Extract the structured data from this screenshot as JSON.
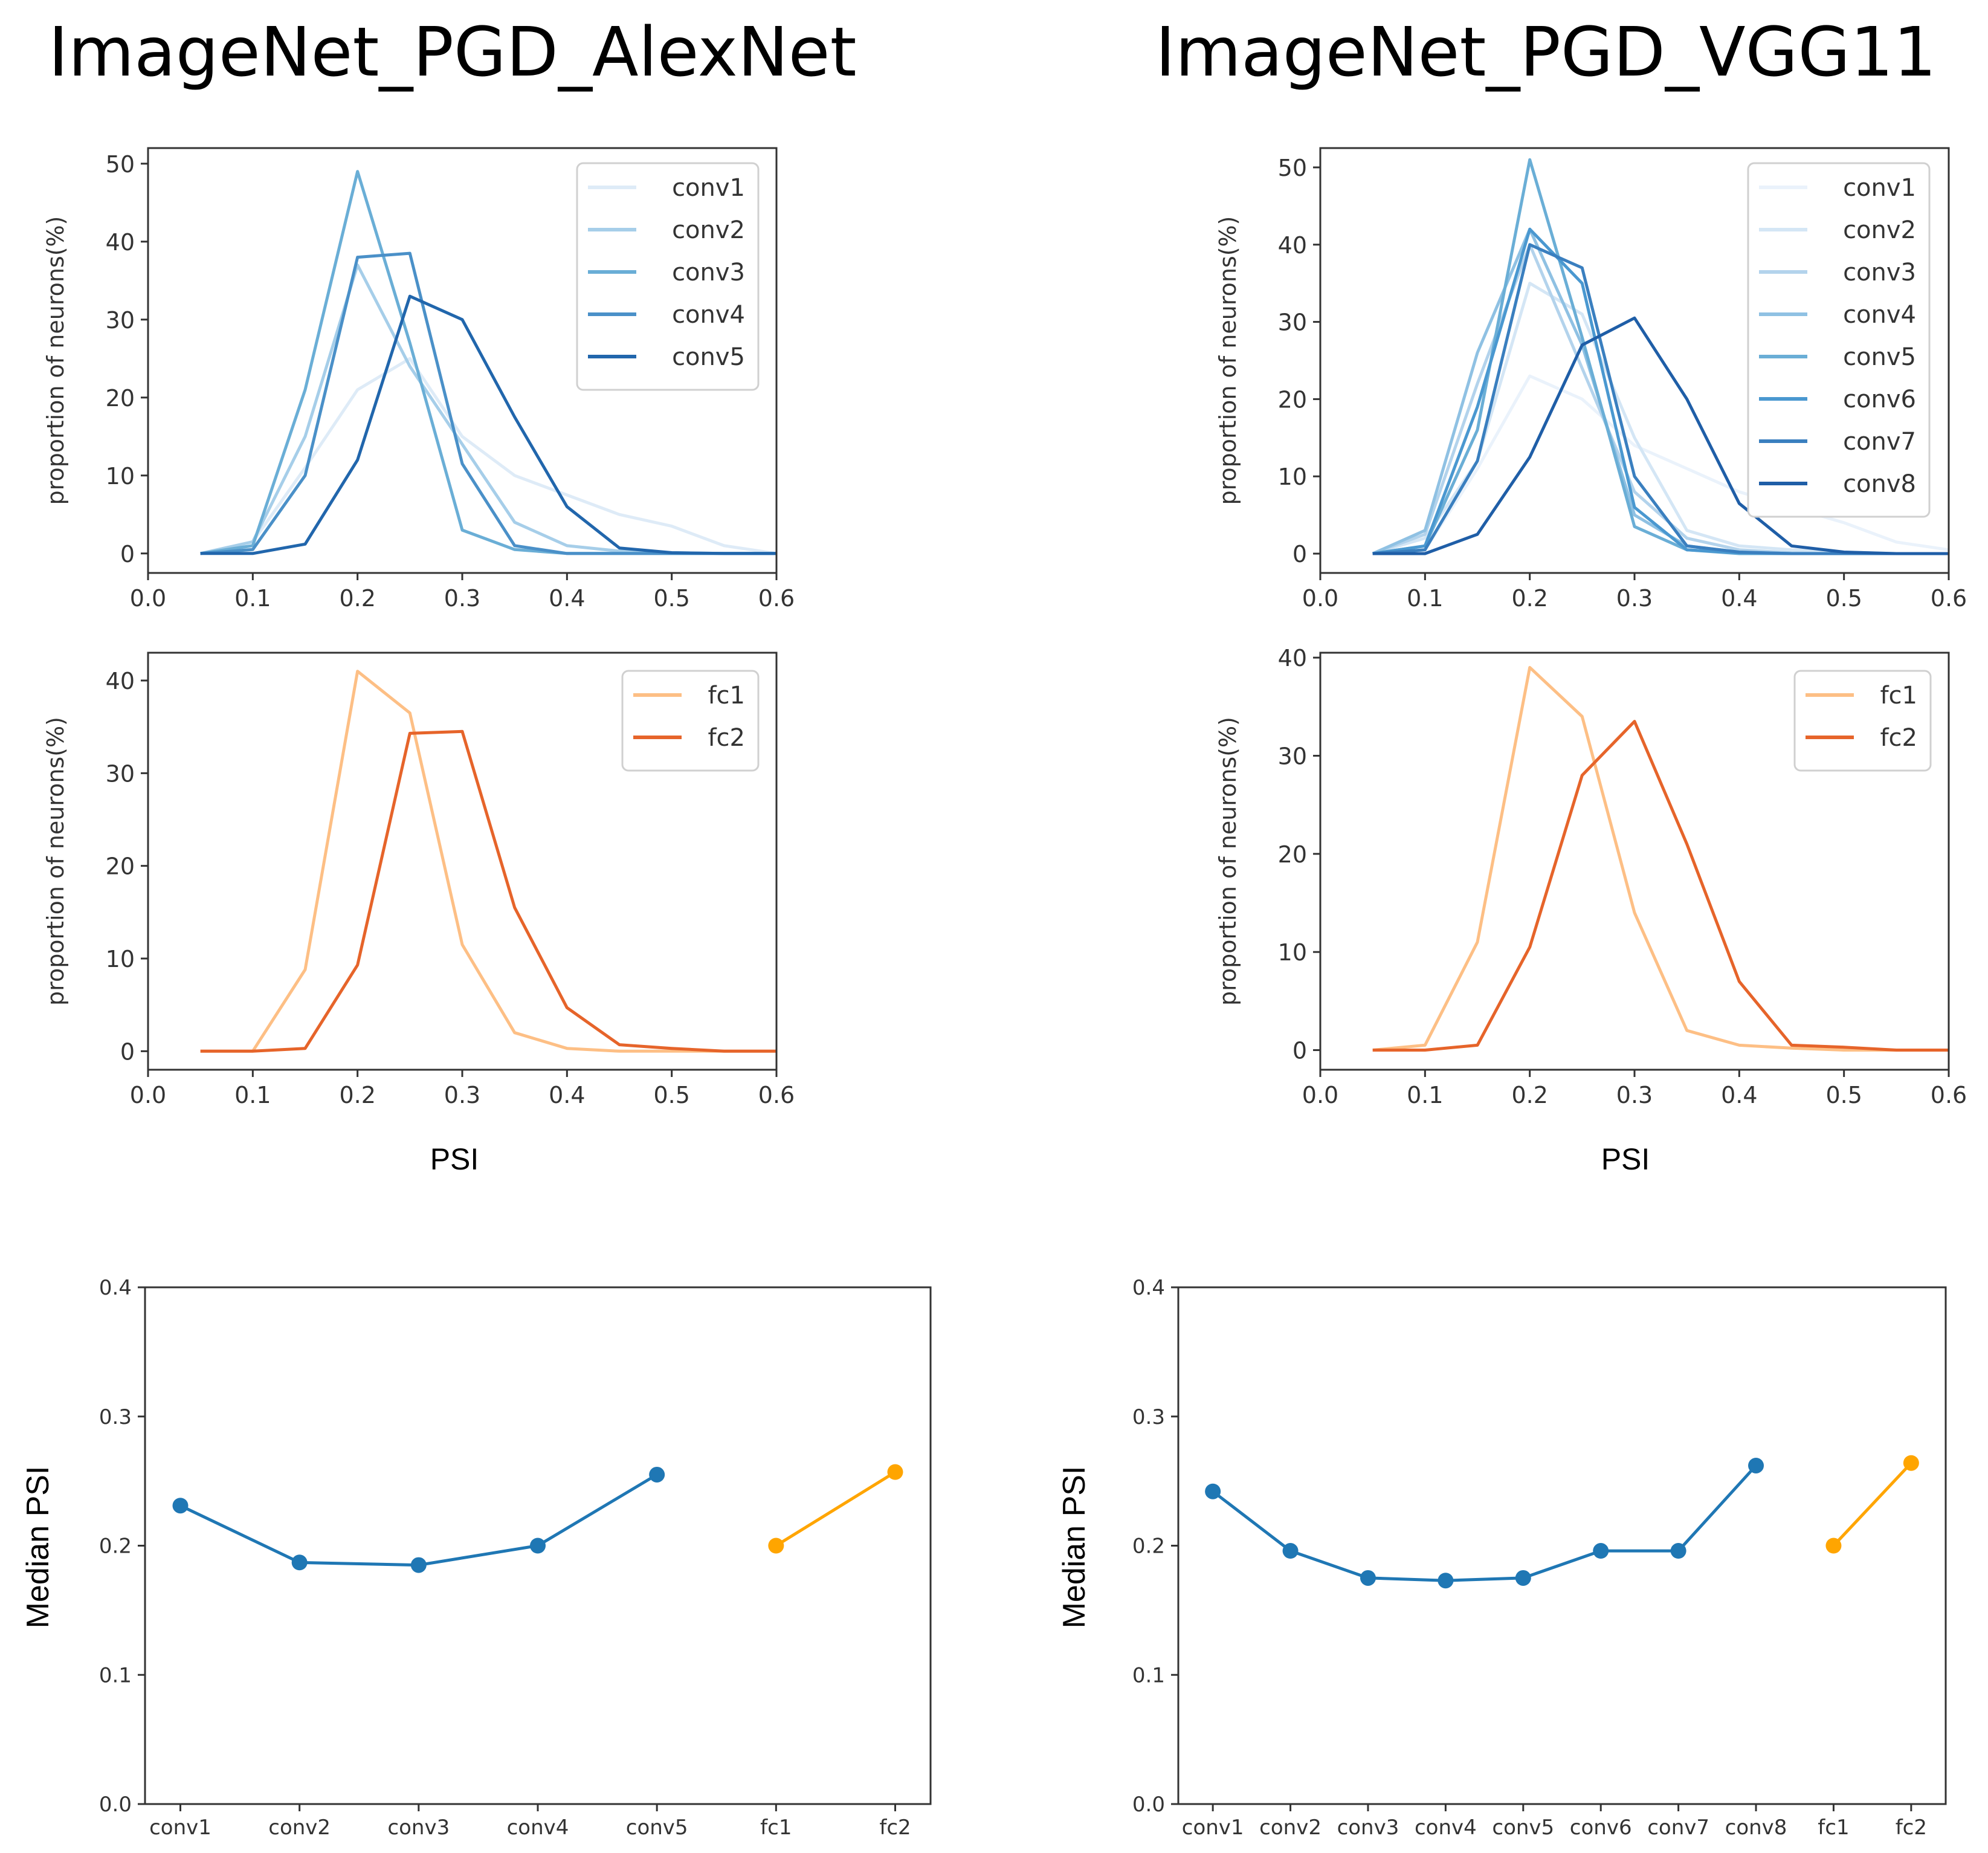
{
  "titles": {
    "left": "ImageNet_PGD_AlexNet",
    "right": "ImageNet_PGD_VGG11"
  },
  "chart_data": [
    {
      "id": "alex_conv",
      "type": "line",
      "x": [
        0.05,
        0.1,
        0.15,
        0.2,
        0.25,
        0.3,
        0.35,
        0.4,
        0.45,
        0.5,
        0.55,
        0.6
      ],
      "xlim": [
        0,
        0.6
      ],
      "ylim": [
        -2.5,
        52
      ],
      "xticks": [
        "0.0",
        "0.1",
        "0.2",
        "0.3",
        "0.4",
        "0.5",
        "0.6"
      ],
      "yticks": [
        0,
        10,
        20,
        30,
        40,
        50
      ],
      "ylabel": "proportion of neurons(%)",
      "xlabel": "",
      "legend": "top-right",
      "series": [
        {
          "name": "conv1",
          "color": "#deebf7",
          "values": [
            0,
            1.5,
            11,
            21,
            25,
            15,
            10,
            7.5,
            5,
            3.5,
            1,
            0
          ]
        },
        {
          "name": "conv2",
          "color": "#a6cee9",
          "values": [
            0,
            1.5,
            15,
            37,
            24,
            14,
            4,
            1,
            0.3,
            0.1,
            0,
            0
          ]
        },
        {
          "name": "conv3",
          "color": "#6aaed6",
          "values": [
            0,
            1,
            21,
            49,
            27,
            3,
            0.5,
            0,
            0,
            0,
            0,
            0
          ]
        },
        {
          "name": "conv4",
          "color": "#4a90c8",
          "values": [
            0,
            0.5,
            10,
            38,
            38.5,
            11.5,
            1,
            0,
            0,
            0,
            0,
            0
          ]
        },
        {
          "name": "conv5",
          "color": "#2166ac",
          "values": [
            0,
            0,
            1.2,
            12,
            33,
            30,
            17.5,
            6,
            0.7,
            0.1,
            0,
            0
          ]
        }
      ]
    },
    {
      "id": "alex_fc",
      "type": "line",
      "x": [
        0.05,
        0.1,
        0.15,
        0.2,
        0.25,
        0.3,
        0.35,
        0.4,
        0.45,
        0.5,
        0.55,
        0.6
      ],
      "xlim": [
        0,
        0.6
      ],
      "ylim": [
        -2,
        43
      ],
      "xticks": [
        "0.0",
        "0.1",
        "0.2",
        "0.3",
        "0.4",
        "0.5",
        "0.6"
      ],
      "yticks": [
        0,
        10,
        20,
        30,
        40
      ],
      "ylabel": "proportion of neurons(%)",
      "xlabel": "PSI",
      "legend": "top-right",
      "series": [
        {
          "name": "fc1",
          "color": "#fdbf85",
          "values": [
            0,
            0,
            8.8,
            41,
            36.5,
            11.5,
            2,
            0.3,
            0,
            0,
            0,
            0
          ]
        },
        {
          "name": "fc2",
          "color": "#e6642a",
          "values": [
            0,
            0,
            0.3,
            9.3,
            34.3,
            34.5,
            15.5,
            4.7,
            0.7,
            0.3,
            0,
            0
          ]
        }
      ]
    },
    {
      "id": "vgg_conv",
      "type": "line",
      "x": [
        0.05,
        0.1,
        0.15,
        0.2,
        0.25,
        0.3,
        0.35,
        0.4,
        0.45,
        0.5,
        0.55,
        0.6
      ],
      "xlim": [
        0,
        0.6
      ],
      "ylim": [
        -2.5,
        52.5
      ],
      "xticks": [
        "0.0",
        "0.1",
        "0.2",
        "0.3",
        "0.4",
        "0.5",
        "0.6"
      ],
      "yticks": [
        0,
        10,
        20,
        30,
        40,
        50
      ],
      "ylabel": "proportion of neurons(%)",
      "xlabel": "",
      "legend": "top-right",
      "series": [
        {
          "name": "conv1",
          "color": "#eaf2fb",
          "values": [
            0,
            0.5,
            11,
            23,
            20,
            14,
            11,
            8,
            6,
            4,
            1.5,
            0.5
          ]
        },
        {
          "name": "conv2",
          "color": "#d4e6f5",
          "values": [
            0,
            2,
            12,
            35,
            31,
            15,
            3,
            1,
            0.5,
            0.2,
            0,
            0
          ]
        },
        {
          "name": "conv3",
          "color": "#b3d3ec",
          "values": [
            0,
            2.5,
            22,
            40,
            24,
            8,
            2,
            0.5,
            0.1,
            0,
            0,
            0
          ]
        },
        {
          "name": "conv4",
          "color": "#8fc1e3",
          "values": [
            0,
            3,
            26,
            42,
            27,
            5,
            1,
            0.2,
            0,
            0,
            0,
            0
          ]
        },
        {
          "name": "conv5",
          "color": "#6aaed6",
          "values": [
            0,
            1,
            16,
            51,
            28,
            3.5,
            0.5,
            0,
            0,
            0,
            0,
            0
          ]
        },
        {
          "name": "conv6",
          "color": "#4a98d0",
          "values": [
            0,
            1,
            19,
            42,
            35,
            6,
            0.5,
            0.1,
            0,
            0,
            0,
            0
          ]
        },
        {
          "name": "conv7",
          "color": "#3a7fbf",
          "values": [
            0,
            0.5,
            12,
            40,
            37,
            10,
            1,
            0.2,
            0,
            0,
            0,
            0
          ]
        },
        {
          "name": "conv8",
          "color": "#1f5ea7",
          "values": [
            0,
            0,
            2.5,
            12.5,
            27,
            30.5,
            20,
            6.5,
            1,
            0.2,
            0,
            0
          ]
        }
      ]
    },
    {
      "id": "vgg_fc",
      "type": "line",
      "x": [
        0.05,
        0.1,
        0.15,
        0.2,
        0.25,
        0.3,
        0.35,
        0.4,
        0.45,
        0.5,
        0.55,
        0.6
      ],
      "xlim": [
        0,
        0.6
      ],
      "ylim": [
        -2,
        40.5
      ],
      "xticks": [
        "0.0",
        "0.1",
        "0.2",
        "0.3",
        "0.4",
        "0.5",
        "0.6"
      ],
      "yticks": [
        0,
        10,
        20,
        30,
        40
      ],
      "ylabel": "proportion of neurons(%)",
      "xlabel": "PSI",
      "legend": "top-right",
      "series": [
        {
          "name": "fc1",
          "color": "#fdbf85",
          "values": [
            0,
            0.5,
            11,
            39,
            34,
            14,
            2,
            0.5,
            0.2,
            0,
            0,
            0
          ]
        },
        {
          "name": "fc2",
          "color": "#e6642a",
          "values": [
            0,
            0,
            0.5,
            10.5,
            28,
            33.5,
            21,
            7,
            0.5,
            0.3,
            0,
            0
          ]
        }
      ]
    },
    {
      "id": "alex_median",
      "type": "line",
      "categories": [
        "conv1",
        "conv2",
        "conv3",
        "conv4",
        "conv5",
        "fc1",
        "fc2"
      ],
      "ylim": [
        0,
        0.4
      ],
      "yticks": [
        "0.0",
        "0.1",
        "0.2",
        "0.3",
        "0.4"
      ],
      "ylabel": "Median PSI",
      "xlabel": "",
      "series": [
        {
          "color": "#1f77b4",
          "x": [
            0,
            1,
            2,
            3,
            4
          ],
          "values": [
            0.231,
            0.187,
            0.185,
            0.2,
            0.255
          ]
        },
        {
          "color": "#ffa500",
          "x": [
            5,
            6
          ],
          "values": [
            0.2,
            0.257
          ]
        }
      ]
    },
    {
      "id": "vgg_median",
      "type": "line",
      "categories": [
        "conv1",
        "conv2",
        "conv3",
        "conv4",
        "conv5",
        "conv6",
        "conv7",
        "conv8",
        "fc1",
        "fc2"
      ],
      "ylim": [
        0,
        0.4
      ],
      "yticks": [
        "0.0",
        "0.1",
        "0.2",
        "0.3",
        "0.4"
      ],
      "ylabel": "Median PSI",
      "xlabel": "",
      "series": [
        {
          "color": "#1f77b4",
          "x": [
            0,
            1,
            2,
            3,
            4,
            5,
            6,
            7
          ],
          "values": [
            0.242,
            0.196,
            0.175,
            0.173,
            0.175,
            0.196,
            0.196,
            0.262
          ]
        },
        {
          "color": "#ffa500",
          "x": [
            8,
            9
          ],
          "values": [
            0.2,
            0.264
          ]
        }
      ]
    }
  ]
}
